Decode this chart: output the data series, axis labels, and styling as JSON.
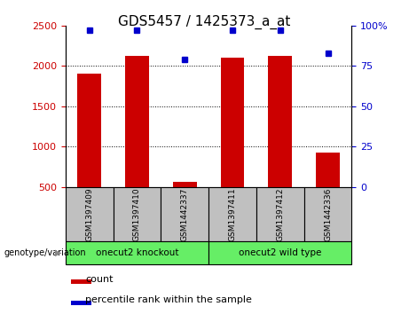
{
  "title": "GDS5457 / 1425373_a_at",
  "categories": [
    "GSM1397409",
    "GSM1397410",
    "GSM1442337",
    "GSM1397411",
    "GSM1397412",
    "GSM1442336"
  ],
  "counts": [
    1900,
    2130,
    560,
    2100,
    2130,
    920
  ],
  "percentiles": [
    97,
    97,
    79,
    97,
    97,
    83
  ],
  "ylim_left": [
    500,
    2500
  ],
  "ylim_right": [
    0,
    100
  ],
  "yticks_left": [
    500,
    1000,
    1500,
    2000,
    2500
  ],
  "yticks_right": [
    0,
    25,
    50,
    75,
    100
  ],
  "bar_color": "#cc0000",
  "dot_color": "#0000cc",
  "bar_width": 0.5,
  "groups": [
    {
      "label": "onecut2 knockout",
      "indices": [
        0,
        1,
        2
      ],
      "color": "#66ee66"
    },
    {
      "label": "onecut2 wild type",
      "indices": [
        3,
        4,
        5
      ],
      "color": "#66ee66"
    }
  ],
  "genotype_label": "genotype/variation",
  "legend_count_label": "count",
  "legend_percentile_label": "percentile rank within the sample",
  "tick_label_color_left": "#cc0000",
  "tick_label_color_right": "#0000cc",
  "xlabel_box_color": "#c0c0c0",
  "title_fontsize": 11
}
